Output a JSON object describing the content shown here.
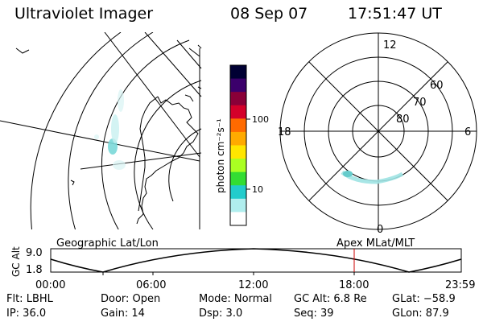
{
  "header": {
    "title": "Ultraviolet Imager",
    "date": "08 Sep 07",
    "time": "17:51:47 UT"
  },
  "colorbar": {
    "label": "photon cm⁻²s⁻¹",
    "ticks": [
      "100",
      "10"
    ],
    "colors": [
      "#000033",
      "#3b006b",
      "#8a0038",
      "#d4002a",
      "#ff6a00",
      "#ffaa00",
      "#ffe600",
      "#aaff22",
      "#33dd33",
      "#22cccc",
      "#b0eeee",
      "#ffffff"
    ]
  },
  "left_map": {
    "label": "Geographic Lat/Lon"
  },
  "right_polar": {
    "label": "Apex MLat/MLT",
    "mlt_labels": {
      "top": "12",
      "bottom": "0",
      "left": "18",
      "right": "6"
    },
    "lat_labels": [
      "60",
      "70",
      "80"
    ]
  },
  "timeline": {
    "axis_label": "GC Alt",
    "y_ticks": [
      "9.0",
      "1.8"
    ],
    "x_ticks": [
      "00:00",
      "06:00",
      "12:00",
      "18:00",
      "23:59"
    ],
    "marker_color": "#cc0000"
  },
  "info": {
    "row1": {
      "flt": "Flt: LBHL",
      "door": "Door: Open",
      "mode": "Mode: Normal",
      "gcalt": "GC Alt: 6.8 Re",
      "glat": "GLat: −58.9"
    },
    "row2": {
      "ip": "IP: 36.0",
      "gain": "Gain: 14",
      "dsp": "Dsp:    3.0",
      "seq": "Seq: 39",
      "glon": "GLon:  87.9"
    }
  }
}
